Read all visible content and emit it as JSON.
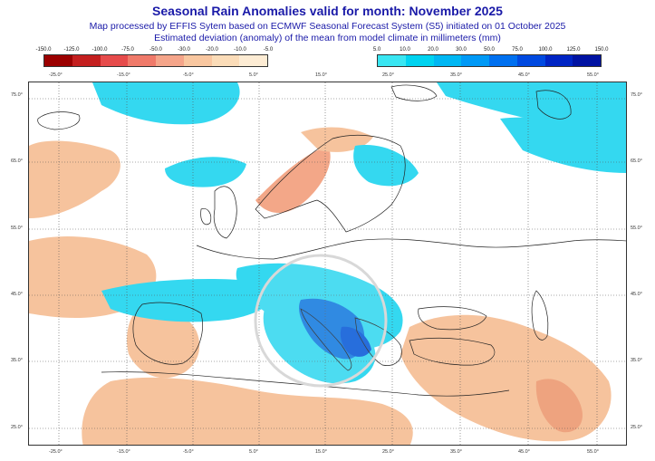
{
  "title": "Seasonal Rain Anomalies valid for month: November 2025",
  "subtitle1": "Map processed by EFFIS Sytem based on ECMWF Seasonal Forecast System (S5) initiated on 01 October 2025",
  "subtitle2": "Estimated deviation (anomaly) of the mean from model climate in millimeters (mm)",
  "legend_negative": {
    "ticks": [
      "-150.0",
      "-125.0",
      "-100.0",
      "-75.0",
      "-50.0",
      "-30.0",
      "-20.0",
      "-10.0",
      "-5.0"
    ],
    "colors": [
      "#9b0000",
      "#c41f1f",
      "#e64b4b",
      "#f07a6a",
      "#f5a58a",
      "#f9c7a0",
      "#fbdcb8",
      "#fdecd4"
    ]
  },
  "legend_positive": {
    "ticks": [
      "5.0",
      "10.0",
      "20.0",
      "30.0",
      "50.0",
      "75.0",
      "100.0",
      "125.0",
      "150.0"
    ],
    "colors": [
      "#39e6f2",
      "#00d3f0",
      "#00b7f3",
      "#0099f6",
      "#0070f0",
      "#0049e0",
      "#0024c4",
      "#0012a2"
    ]
  },
  "lon_labels": [
    "-25.0°",
    "-15.0°",
    "-5.0°",
    "5.0°",
    "15.0°",
    "25.0°",
    "35.0°",
    "45.0°",
    "55.0°"
  ],
  "lat_labels": [
    "75.0°",
    "65.0°",
    "55.0°",
    "45.0°",
    "35.0°",
    "25.0°"
  ],
  "colors": {
    "title": "#1a1aa8",
    "dry_anomaly": "#f6c39d",
    "wet_anomaly": "#34d8f0",
    "strong_wet_anomaly": "#0a5bd8"
  }
}
